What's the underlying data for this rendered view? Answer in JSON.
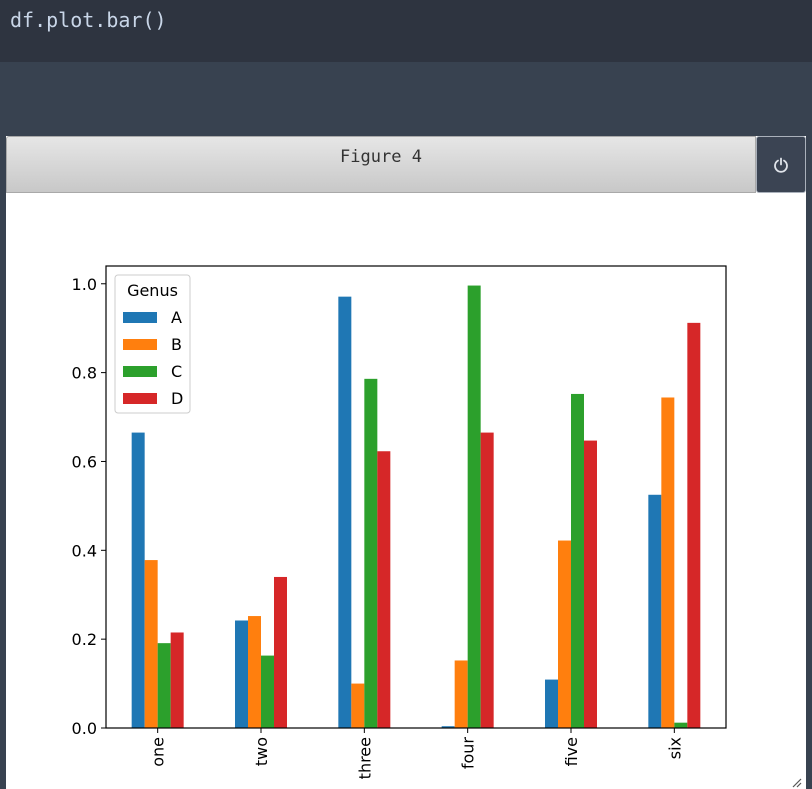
{
  "code_cell": {
    "source": "df.plot.bar()"
  },
  "figure": {
    "title": "Figure 4",
    "close_icon": "power-icon"
  },
  "chart_data": {
    "type": "bar",
    "categories": [
      "one",
      "two",
      "three",
      "four",
      "five",
      "six"
    ],
    "series": [
      {
        "name": "A",
        "color": "#1f77b4",
        "values": [
          0.665,
          0.242,
          0.971,
          0.004,
          0.109,
          0.525
        ]
      },
      {
        "name": "B",
        "color": "#ff7f0e",
        "values": [
          0.378,
          0.252,
          0.1,
          0.152,
          0.422,
          0.744
        ]
      },
      {
        "name": "C",
        "color": "#2ca02c",
        "values": [
          0.191,
          0.163,
          0.786,
          0.996,
          0.752,
          0.012
        ]
      },
      {
        "name": "D",
        "color": "#d62728",
        "values": [
          0.215,
          0.34,
          0.623,
          0.665,
          0.647,
          0.912
        ]
      }
    ],
    "legend_title": "Genus",
    "legend_placement": "upper-left",
    "ylim": [
      0,
      1.04
    ],
    "yticks": [
      "0.0",
      "0.2",
      "0.4",
      "0.6",
      "0.8",
      "1.0"
    ],
    "ytick_values": [
      0,
      0.2,
      0.4,
      0.6,
      0.8,
      1.0
    ],
    "grid": false
  }
}
